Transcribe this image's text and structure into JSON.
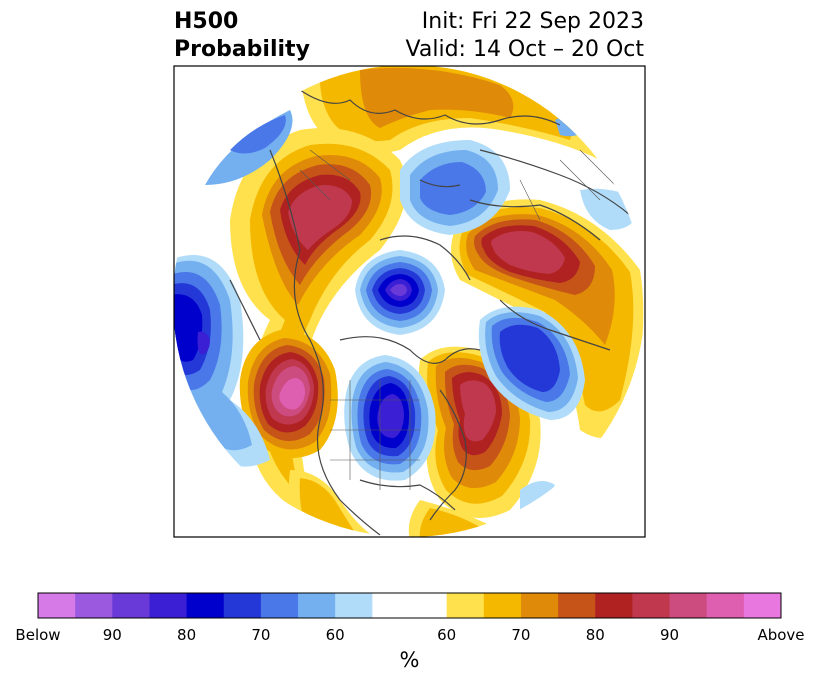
{
  "title": {
    "left_line1": "H500",
    "left_line2": "Probability",
    "right_line1": "Init: Fri 22 Sep 2023",
    "right_line2": "Valid: 14 Oct – 20 Oct"
  },
  "colorbar": {
    "unit": "%",
    "colors": [
      "#d67ae8",
      "#9b59e0",
      "#6a3ad8",
      "#3a1fd4",
      "#0000cc",
      "#2438d8",
      "#4a78e8",
      "#74b0f0",
      "#b0dcfa",
      "#ffffff",
      "#ffffff",
      "#ffe14d",
      "#f5b800",
      "#e08a0a",
      "#c65418",
      "#b02222",
      "#c0384e",
      "#cc4c80",
      "#de5fb0",
      "#e878e0"
    ],
    "tick_labels": [
      "Below",
      "90",
      "80",
      "70",
      "60",
      "60",
      "70",
      "80",
      "90",
      "Above"
    ]
  },
  "map": {
    "regions_described": "Northern hemisphere polar projection with below-normal (blue/purple) and above-normal (yellow/orange/red/pink) 500mb height anomaly probabilities",
    "colors": {
      "coast": "#444444",
      "frame": "#000000"
    }
  }
}
